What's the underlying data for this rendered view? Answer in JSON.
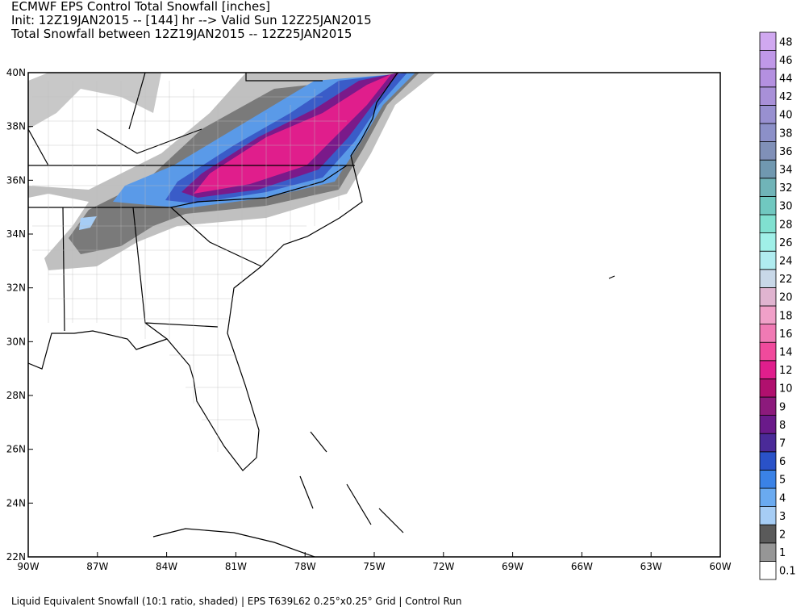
{
  "header": {
    "lines": [
      "ECMWF EPS Control Total Snowfall [inches]",
      "Init: 12Z19JAN2015 -- [144] hr --> Valid Sun 12Z25JAN2015",
      "Total Snowfall between 12Z19JAN2015 -- 12Z25JAN2015"
    ]
  },
  "map": {
    "lat_labels": [
      "40N",
      "38N",
      "36N",
      "34N",
      "32N",
      "30N",
      "28N",
      "26N",
      "24N",
      "22N"
    ],
    "lon_labels": [
      "90W",
      "87W",
      "84W",
      "81W",
      "78W",
      "75W",
      "72W",
      "69W",
      "66W",
      "63W",
      "60W"
    ]
  },
  "colorbar": {
    "levels": [
      0.1,
      1,
      2,
      3,
      4,
      5,
      6,
      7,
      8,
      9,
      10,
      12,
      14,
      16,
      18,
      20,
      22,
      24,
      26,
      28,
      30,
      32,
      34,
      36,
      38,
      40,
      42,
      44,
      46,
      48
    ],
    "colors": [
      "#ffffff",
      "#969696",
      "#5a5a5a",
      "#a6cdf5",
      "#6aaaf0",
      "#3a82e6",
      "#2a52c8",
      "#4a2a98",
      "#6a1a8a",
      "#8c1a7c",
      "#b0106e",
      "#e01e8c",
      "#f04a9c",
      "#f07ab4",
      "#f0a0c8",
      "#e0b4d0",
      "#c8d8e8",
      "#b0ecf0",
      "#a0f0e8",
      "#80e0d0",
      "#70c8c0",
      "#70b4b8",
      "#7098b0",
      "#8090b8",
      "#8c90c8",
      "#9890d0",
      "#a890d8",
      "#b490e0",
      "#c098e8",
      "#d0a8f0"
    ]
  },
  "footer": "Liquid Equivalent Snowfall (10:1 ratio, shaded) | EPS T639L62 0.25°x0.25° Grid | Control Run"
}
